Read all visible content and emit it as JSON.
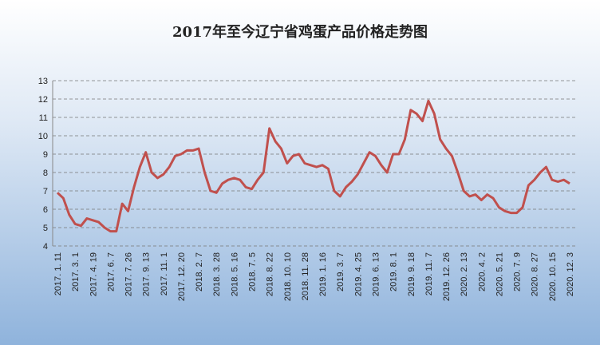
{
  "chart_data": {
    "type": "line",
    "title": "2017年至今辽宁省鸡蛋产品价格走势图",
    "categories": [
      "2017. 1. 11",
      null,
      null,
      "2017. 3. 1",
      null,
      null,
      "2017. 4. 19",
      null,
      null,
      "2017. 6. 7",
      null,
      null,
      "2017. 7. 26",
      null,
      null,
      "2017. 9. 13",
      null,
      null,
      "2017. 11. 1",
      null,
      null,
      "2017. 12. 20",
      null,
      null,
      "2018. 2. 7",
      null,
      null,
      "2018. 3. 28",
      null,
      null,
      "2018. 5. 16",
      null,
      null,
      "2018. 7. 5",
      null,
      null,
      "2018. 8. 22",
      null,
      null,
      "2018. 10. 10",
      null,
      null,
      "2018. 11. 28",
      null,
      null,
      "2019. 1. 16",
      null,
      null,
      "2019. 3. 7",
      null,
      null,
      "2019. 4. 25",
      null,
      null,
      "2019. 6. 13",
      null,
      null,
      "2019. 8. 1",
      null,
      null,
      "2019. 9. 18",
      null,
      null,
      "2019. 11. 7",
      null,
      null,
      "2019. 12. 26",
      null,
      null,
      "2020. 2. 13",
      null,
      null,
      "2020. 4. 2",
      null,
      null,
      "2020. 5. 21",
      null,
      null,
      "2020. 7. 9",
      null,
      null,
      "2020. 8. 27",
      null,
      null,
      "2020. 10. 15",
      null,
      null,
      "2020. 12. 3"
    ],
    "series": [
      {
        "color": "#c0504d",
        "values": [
          6.9,
          6.6,
          5.7,
          5.2,
          5.1,
          5.5,
          5.4,
          5.3,
          5.0,
          4.8,
          4.8,
          6.3,
          5.9,
          7.2,
          8.3,
          9.1,
          8.0,
          7.7,
          7.9,
          8.3,
          8.9,
          9.0,
          9.2,
          9.2,
          9.3,
          8.0,
          7.0,
          6.9,
          7.4,
          7.6,
          7.7,
          7.6,
          7.2,
          7.1,
          7.6,
          8.0,
          10.4,
          9.7,
          9.3,
          8.5,
          8.9,
          9.0,
          8.5,
          8.4,
          8.3,
          8.4,
          8.2,
          7.0,
          6.7,
          7.2,
          7.5,
          7.9,
          8.5,
          9.1,
          8.9,
          8.4,
          8.0,
          9.0,
          9.0,
          9.8,
          11.4,
          11.2,
          10.8,
          11.9,
          11.2,
          9.8,
          9.3,
          8.9,
          8.0,
          7.0,
          6.7,
          6.8,
          6.5,
          6.8,
          6.6,
          6.1,
          5.9,
          5.8,
          5.8,
          6.1,
          7.3,
          7.6,
          8.0,
          8.3,
          7.6,
          7.5,
          7.6,
          7.4
        ]
      }
    ],
    "ylim": [
      4,
      13
    ],
    "yticks": [
      4,
      5,
      6,
      7,
      8,
      9,
      10,
      11,
      12,
      13
    ],
    "grid": true
  }
}
